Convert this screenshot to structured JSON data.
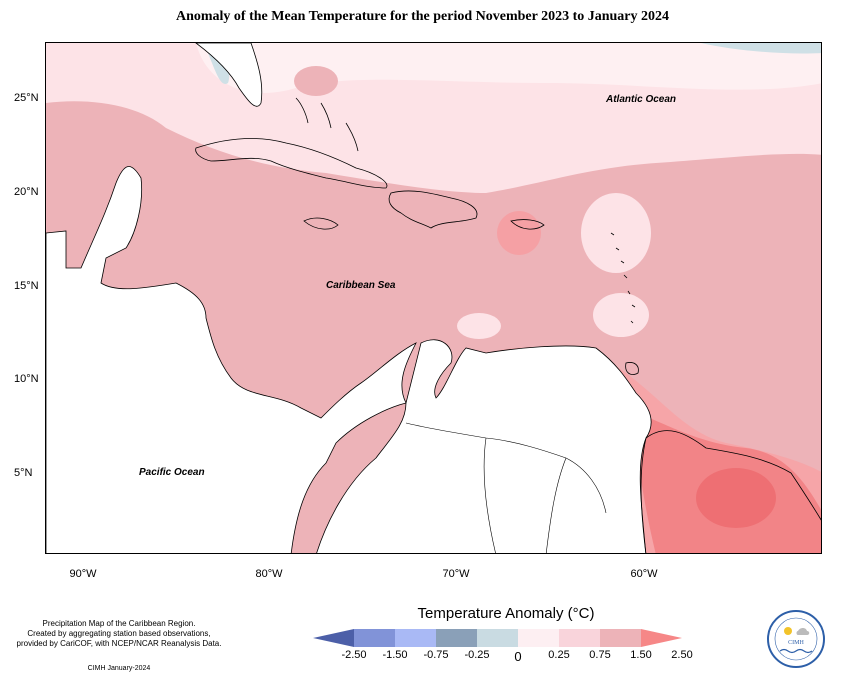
{
  "title": "Anomaly of the Mean Temperature for the period November 2023 to January 2024",
  "map": {
    "lat_labels": [
      "25°N",
      "20°N",
      "15°N",
      "10°N",
      "5°N"
    ],
    "lon_labels": [
      "90°W",
      "80°W",
      "70°W",
      "60°W"
    ],
    "places": {
      "atlantic": "Atlantic Ocean",
      "caribbean": "Caribbean Sea",
      "pacific": "Pacific Ocean"
    }
  },
  "legend": {
    "title": "Temperature Anomaly (°C)",
    "breaks": [
      "-2.50",
      "-1.50",
      "-0.75",
      "-0.25",
      "0",
      "0.25",
      "0.75",
      "1.50",
      "2.50"
    ],
    "colors": [
      "#4c5fa8",
      "#8193d8",
      "#a9b9f5",
      "#8aa0b8",
      "#c9dbe2",
      "#fdeff2",
      "#f9d4db",
      "#edb3b8",
      "#f68787"
    ]
  },
  "credits": {
    "line1": "Precipitation Map of the Caribbean Region.",
    "line2": "Created by aggregating station based observations,",
    "line3": "provided by CariCOF, with NCEP/NCAR Reanalysis Data.",
    "line4": "CIMH January-2024"
  },
  "logo": {
    "text": "CIMH"
  }
}
